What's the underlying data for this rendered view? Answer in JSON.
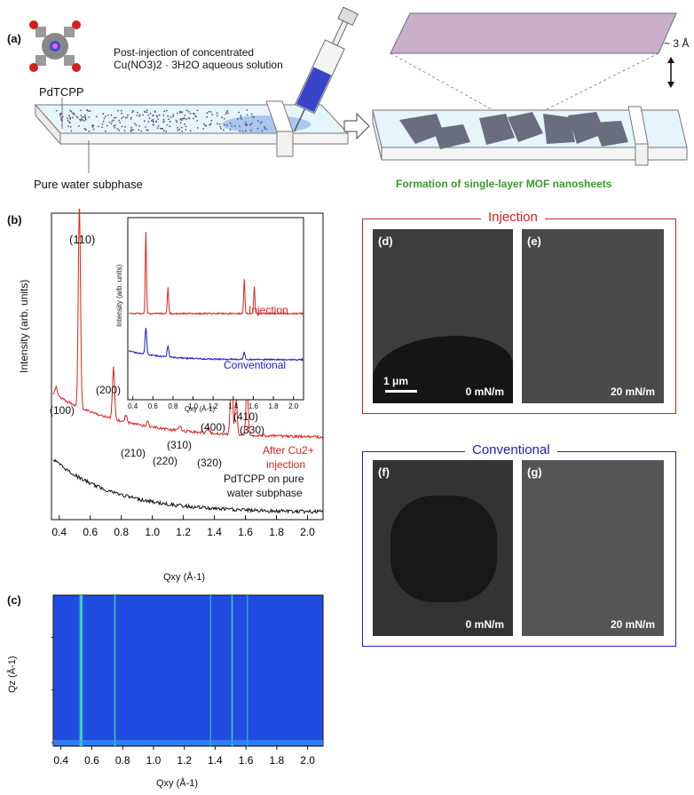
{
  "panel_a": {
    "label": "(a)",
    "molecule_label": "PdTCPP",
    "injection_text_line1": "Post-injection of concentrated",
    "injection_text_line2": "Cu(NO3)2 · 3H2O aqueous solution",
    "subphase_label": "Pure water subphase",
    "thickness_label": "~ 3 Å",
    "formation_label": "Formation of single-layer MOF nanosheets",
    "formation_color": "#3a9a2a"
  },
  "panel_b": {
    "label": "(b)",
    "ylabel": "Intensity (arb. units)",
    "xlabel": "Qxy (Å-1)",
    "peaks": [
      "(110)",
      "(100)",
      "(200)",
      "(210)",
      "(220)",
      "(310)",
      "(320)",
      "(400)",
      "(410)",
      "(330)"
    ],
    "series_red_label_line1": "After Cu2+",
    "series_red_label_line2": "injection",
    "series_black_label_line1": "PdTCPP on pure",
    "series_black_label_line2": "water subphase",
    "inset_injection": "Injection",
    "inset_conventional": "Conventional",
    "inset_ylabel": "Intensity (arb. units)",
    "inset_xlabel": "Qxy (Å-1)",
    "red_color": "#e02020",
    "blue_color": "#1a1ad0"
  },
  "panel_c": {
    "label": "(c)",
    "ylabel": "Qz (Å-1)",
    "xlabel": "Qxy (Å-1)"
  },
  "tem": {
    "injection_title": "Injection",
    "conventional_title": "Conventional",
    "injection_color": "#d42020",
    "conventional_color": "#2020c0",
    "d": {
      "label": "(d)",
      "pressure": "0 mN/m",
      "scalebar": "1 μm"
    },
    "e": {
      "label": "(e)",
      "pressure": "20 mN/m"
    },
    "f": {
      "label": "(f)",
      "pressure": "0 mN/m"
    },
    "g": {
      "label": "(g)",
      "pressure": "20 mN/m"
    }
  },
  "chart_data": [
    {
      "type": "line",
      "panel": "b",
      "xlabel": "Qxy (Å-1)",
      "ylabel": "Intensity (arb. units)",
      "xlim": [
        0.35,
        2.1
      ],
      "xticks": [
        0.4,
        0.6,
        0.8,
        1.0,
        1.2,
        1.4,
        1.6,
        1.8,
        2.0
      ],
      "series": [
        {
          "name": "After Cu2+ injection",
          "peaks_qxy": [
            0.38,
            0.53,
            0.75,
            0.83,
            0.97,
            1.18,
            1.36,
            1.51,
            1.54,
            1.61
          ]
        },
        {
          "name": "PdTCPP on pure water subphase",
          "peaks_qxy": []
        }
      ]
    },
    {
      "type": "line",
      "panel": "b-inset",
      "xlabel": "Qxy (Å-1)",
      "xlim": [
        0.35,
        2.1
      ],
      "xticks": [
        0.4,
        0.6,
        0.8,
        1.0,
        1.2,
        1.4,
        1.6,
        1.8,
        2.0
      ],
      "series": [
        {
          "name": "Injection",
          "peaks_qxy": [
            0.53,
            0.75,
            1.51,
            1.61
          ]
        },
        {
          "name": "Conventional",
          "peaks_qxy": [
            0.53,
            0.75,
            1.51
          ]
        }
      ]
    },
    {
      "type": "heatmap",
      "panel": "c",
      "xlabel": "Qxy (Å-1)",
      "ylabel": "Qz (Å-1)",
      "xlim": [
        0.35,
        2.1
      ],
      "ylim": [
        0,
        0.27
      ],
      "xticks": [
        0.4,
        0.6,
        0.8,
        1.0,
        1.2,
        1.4,
        1.6,
        1.8,
        2.0
      ],
      "yticks": [
        0,
        0.1,
        0.2
      ],
      "rods_qxy": [
        0.53,
        0.75,
        1.37,
        1.51,
        1.61
      ]
    }
  ]
}
